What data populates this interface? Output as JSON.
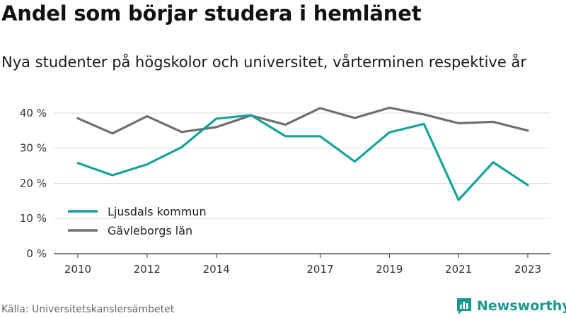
{
  "title": "Andel som börjar studera i hemlänet",
  "subtitle": "Nya studenter på högskolor och universitet, vårterminen respektive år",
  "source": "Källa: Universitetskanslersämbetet",
  "brand": "Newsworthy",
  "colors": {
    "series1": "#14a39a",
    "series2": "#6f6e75",
    "brand": "#1a9a8e",
    "grid": "#dddddd"
  },
  "chart_data": {
    "type": "line",
    "x": [
      2010,
      2011,
      2012,
      2013,
      2014,
      2015,
      2016,
      2017,
      2018,
      2019,
      2020,
      2021,
      2022,
      2023
    ],
    "xticks": [
      2010,
      2012,
      2014,
      2017,
      2019,
      2021,
      2023
    ],
    "yticks": [
      0,
      10,
      20,
      30,
      40
    ],
    "ytick_labels": [
      "0 %",
      "10 %",
      "20 %",
      "30 %",
      "40 %"
    ],
    "ylim": [
      0,
      42
    ],
    "legend_position": "lower-left",
    "grid": true,
    "series": [
      {
        "name": "Ljusdals kommun",
        "color": "#14a39a",
        "values": [
          25.8,
          22.3,
          25.4,
          30.3,
          38.4,
          39.4,
          33.4,
          33.4,
          26.2,
          34.5,
          36.9,
          15.3,
          26.0,
          19.5
        ]
      },
      {
        "name": "Gävleborgs län",
        "color": "#6f6e75",
        "values": [
          38.5,
          34.2,
          39.1,
          34.6,
          36.0,
          39.3,
          36.7,
          41.4,
          38.6,
          41.5,
          39.6,
          37.1,
          37.5,
          35.0
        ]
      }
    ]
  }
}
